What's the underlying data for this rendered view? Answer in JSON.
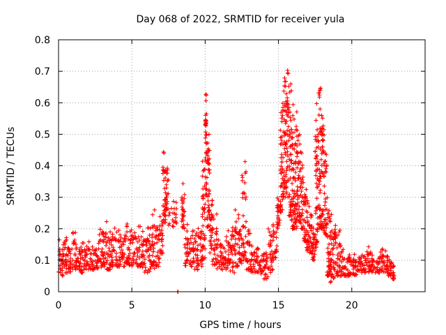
{
  "chart_data": {
    "type": "scatter",
    "title": "Day 068 of 2022, SRMTID for receiver yula",
    "xlabel": "GPS time / hours",
    "ylabel": "SRMTID / TECUs",
    "xlim": [
      0,
      25
    ],
    "ylim": [
      0,
      0.8
    ],
    "xticks": [
      "0",
      "5",
      "10",
      "15",
      "20"
    ],
    "yticks": [
      "0",
      "0.1",
      "0.2",
      "0.3",
      "0.4",
      "0.5",
      "0.6",
      "0.7",
      "0.8"
    ],
    "grid": true,
    "marker": "+",
    "color": "#ff0000",
    "series": [
      {
        "name": "SRMTID",
        "note": "Envelope of dense scatter sampled at ~0.1 h; each entry [hour, low, high]",
        "envelope": [
          [
            0.0,
            0.05,
            0.18
          ],
          [
            0.3,
            0.06,
            0.2
          ],
          [
            0.6,
            0.06,
            0.17
          ],
          [
            0.9,
            0.07,
            0.2
          ],
          [
            1.2,
            0.07,
            0.16
          ],
          [
            1.5,
            0.06,
            0.17
          ],
          [
            1.8,
            0.07,
            0.16
          ],
          [
            2.1,
            0.07,
            0.15
          ],
          [
            2.4,
            0.07,
            0.14
          ],
          [
            2.7,
            0.07,
            0.2
          ],
          [
            3.0,
            0.08,
            0.23
          ],
          [
            3.3,
            0.07,
            0.22
          ],
          [
            3.6,
            0.08,
            0.21
          ],
          [
            3.9,
            0.08,
            0.2
          ],
          [
            4.2,
            0.08,
            0.19
          ],
          [
            4.5,
            0.09,
            0.23
          ],
          [
            4.8,
            0.08,
            0.2
          ],
          [
            5.1,
            0.09,
            0.21
          ],
          [
            5.4,
            0.08,
            0.22
          ],
          [
            5.7,
            0.06,
            0.2
          ],
          [
            6.0,
            0.06,
            0.22
          ],
          [
            6.3,
            0.07,
            0.26
          ],
          [
            6.6,
            0.08,
            0.24
          ],
          [
            6.9,
            0.12,
            0.24
          ],
          [
            7.1,
            0.22,
            0.46
          ],
          [
            7.3,
            0.26,
            0.4
          ],
          [
            7.5,
            0.2,
            0.29
          ],
          [
            8.1,
            0.0,
            0.0
          ],
          [
            8.4,
            0.2,
            0.35
          ],
          [
            8.6,
            0.08,
            0.22
          ],
          [
            8.9,
            0.08,
            0.2
          ],
          [
            9.2,
            0.07,
            0.2
          ],
          [
            9.5,
            0.08,
            0.22
          ],
          [
            9.8,
            0.1,
            0.42
          ],
          [
            10.0,
            0.3,
            0.63
          ],
          [
            10.1,
            0.2,
            0.55
          ],
          [
            10.3,
            0.12,
            0.3
          ],
          [
            10.5,
            0.08,
            0.25
          ],
          [
            10.8,
            0.07,
            0.18
          ],
          [
            11.1,
            0.07,
            0.17
          ],
          [
            11.4,
            0.07,
            0.2
          ],
          [
            11.7,
            0.06,
            0.22
          ],
          [
            12.0,
            0.08,
            0.26
          ],
          [
            12.3,
            0.09,
            0.2
          ],
          [
            12.5,
            0.1,
            0.42
          ],
          [
            12.8,
            0.07,
            0.2
          ],
          [
            13.1,
            0.06,
            0.15
          ],
          [
            13.4,
            0.06,
            0.14
          ],
          [
            13.7,
            0.05,
            0.12
          ],
          [
            14.0,
            0.04,
            0.13
          ],
          [
            14.3,
            0.06,
            0.2
          ],
          [
            14.6,
            0.1,
            0.22
          ],
          [
            14.9,
            0.2,
            0.3
          ],
          [
            15.1,
            0.25,
            0.6
          ],
          [
            15.3,
            0.3,
            0.7
          ],
          [
            15.5,
            0.3,
            0.71
          ],
          [
            15.7,
            0.24,
            0.66
          ],
          [
            15.9,
            0.2,
            0.63
          ],
          [
            16.1,
            0.2,
            0.58
          ],
          [
            16.3,
            0.22,
            0.5
          ],
          [
            16.5,
            0.2,
            0.45
          ],
          [
            16.7,
            0.16,
            0.35
          ],
          [
            16.9,
            0.13,
            0.3
          ],
          [
            17.1,
            0.12,
            0.25
          ],
          [
            17.3,
            0.1,
            0.22
          ],
          [
            17.5,
            0.14,
            0.62
          ],
          [
            17.7,
            0.2,
            0.65
          ],
          [
            17.9,
            0.2,
            0.62
          ],
          [
            18.1,
            0.18,
            0.5
          ],
          [
            18.3,
            0.05,
            0.3
          ],
          [
            18.5,
            0.03,
            0.25
          ],
          [
            18.7,
            0.04,
            0.22
          ],
          [
            18.9,
            0.05,
            0.2
          ],
          [
            19.2,
            0.05,
            0.15
          ],
          [
            19.5,
            0.05,
            0.13
          ],
          [
            19.8,
            0.05,
            0.12
          ],
          [
            20.1,
            0.05,
            0.12
          ],
          [
            20.4,
            0.06,
            0.11
          ],
          [
            20.7,
            0.06,
            0.12
          ],
          [
            21.0,
            0.06,
            0.15
          ],
          [
            21.3,
            0.06,
            0.12
          ],
          [
            21.6,
            0.06,
            0.11
          ],
          [
            21.9,
            0.06,
            0.14
          ],
          [
            22.2,
            0.06,
            0.13
          ],
          [
            22.5,
            0.05,
            0.11
          ],
          [
            22.8,
            0.04,
            0.1
          ]
        ]
      }
    ]
  }
}
